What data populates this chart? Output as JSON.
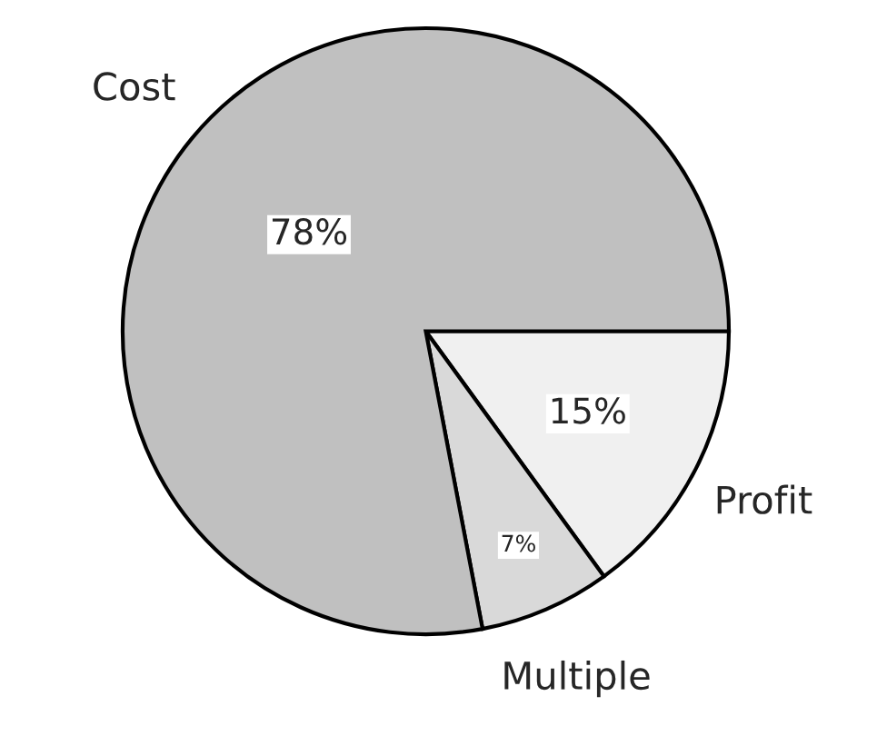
{
  "chart_data": {
    "type": "pie",
    "categories": [
      "Profit",
      "Multiple",
      "Cost"
    ],
    "values": [
      15,
      7,
      78
    ],
    "colors": [
      "#f0f0f0",
      "#d9d9d9",
      "#c0c0c0"
    ],
    "value_labels": [
      "15%",
      "7%",
      "78%"
    ]
  }
}
